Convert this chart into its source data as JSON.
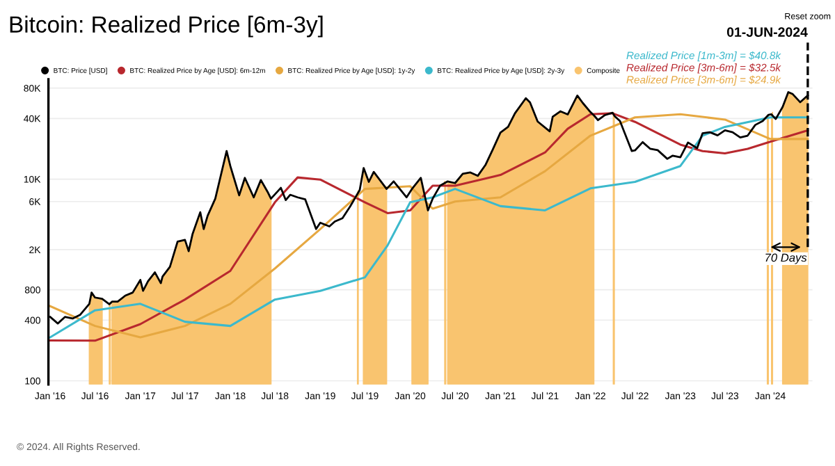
{
  "chart_data": {
    "type": "line",
    "title": "Bitcoin: Realized Price [6m-3y]",
    "log": "y",
    "ylim": [
      92,
      98000
    ],
    "yticks": [
      100,
      400,
      800,
      {
        "value": 2000,
        "label": "2K"
      },
      {
        "value": 6000,
        "label": "6K"
      },
      {
        "value": 10000,
        "label": "10K"
      },
      {
        "value": 40000,
        "label": "40K"
      },
      {
        "value": 80000,
        "label": "80K"
      }
    ],
    "xlim": [
      "2015-12-25",
      "2024-06-20"
    ],
    "xticks": [
      {
        "value": "2016-01-01",
        "label": "Jan '16"
      },
      {
        "value": "2016-07-01",
        "label": "Jul '16"
      },
      {
        "value": "2017-01-01",
        "label": "Jan '17"
      },
      {
        "value": "2017-07-01",
        "label": "Jul '17"
      },
      {
        "value": "2018-01-01",
        "label": "Jan '18"
      },
      {
        "value": "2018-07-01",
        "label": "Jul '18"
      },
      {
        "value": "2019-01-01",
        "label": "Jan '19"
      },
      {
        "value": "2019-07-01",
        "label": "Jul '19"
      },
      {
        "value": "2020-01-01",
        "label": "Jan '20"
      },
      {
        "value": "2020-07-01",
        "label": "Jul '20"
      },
      {
        "value": "2021-01-01",
        "label": "Jan '21"
      },
      {
        "value": "2021-07-01",
        "label": "Jul '21"
      },
      {
        "value": "2022-01-01",
        "label": "Jan '22"
      },
      {
        "value": "2022-07-01",
        "label": "Jul '22"
      },
      {
        "value": "2023-01-01",
        "label": "Jan '23"
      },
      {
        "value": "2023-07-01",
        "label": "Jul '23"
      },
      {
        "value": "2024-01-01",
        "label": "Jan '24"
      }
    ],
    "grid": "y",
    "legend": "top",
    "marker": "none",
    "line_style": "solid",
    "series": [
      {
        "name": "BTC: Price [USD]",
        "color": "#000000",
        "x": [
          "2016-01-01",
          "2016-02-01",
          "2016-03-01",
          "2016-04-01",
          "2016-05-01",
          "2016-06-08",
          "2016-06-17",
          "2016-07-01",
          "2016-07-30",
          "2016-08-28",
          "2016-09-08",
          "2016-10-01",
          "2016-11-01",
          "2016-12-01",
          "2017-01-01",
          "2017-01-12",
          "2017-02-01",
          "2017-03-01",
          "2017-03-25",
          "2017-04-01",
          "2017-05-01",
          "2017-06-01",
          "2017-07-01",
          "2017-07-16",
          "2017-08-01",
          "2017-09-01",
          "2017-09-15",
          "2017-10-01",
          "2017-11-01",
          "2017-12-17",
          "2018-01-01",
          "2018-02-06",
          "2018-03-01",
          "2018-04-06",
          "2018-05-05",
          "2018-06-01",
          "2018-06-15",
          "2018-07-25",
          "2018-08-14",
          "2018-09-01",
          "2018-10-01",
          "2018-11-01",
          "2018-12-15",
          "2019-01-01",
          "2019-02-07",
          "2019-03-01",
          "2019-04-01",
          "2019-05-01",
          "2019-06-10",
          "2019-06-26",
          "2019-07-17",
          "2019-08-06",
          "2019-09-27",
          "2019-10-26",
          "2019-12-17",
          "2020-01-08",
          "2020-02-13",
          "2020-03-13",
          "2020-04-01",
          "2020-05-01",
          "2020-06-01",
          "2020-07-01",
          "2020-08-01",
          "2020-09-01",
          "2020-10-01",
          "2020-11-01",
          "2020-12-01",
          "2021-01-01",
          "2021-02-01",
          "2021-03-01",
          "2021-04-14",
          "2021-05-01",
          "2021-06-01",
          "2021-07-20",
          "2021-08-01",
          "2021-09-01",
          "2021-10-01",
          "2021-11-09",
          "2021-12-01",
          "2022-01-01",
          "2022-01-15",
          "2022-02-01",
          "2022-03-01",
          "2022-04-01",
          "2022-04-10",
          "2022-05-01",
          "2022-06-18",
          "2022-07-01",
          "2022-08-01",
          "2022-09-01",
          "2022-10-01",
          "2022-11-09",
          "2022-12-01",
          "2023-01-01",
          "2023-02-01",
          "2023-03-10",
          "2023-04-01",
          "2023-05-01",
          "2023-06-01",
          "2023-07-01",
          "2023-08-01",
          "2023-09-01",
          "2023-10-01",
          "2023-11-01",
          "2023-12-01",
          "2023-12-25",
          "2024-01-05",
          "2024-01-23",
          "2024-02-20",
          "2024-03-14",
          "2024-04-01",
          "2024-05-01",
          "2024-06-01"
        ],
        "values": [
          430,
          370,
          430,
          415,
          450,
          580,
          750,
          670,
          650,
          575,
          610,
          610,
          700,
          750,
          1000,
          780,
          970,
          1190,
          930,
          1080,
          1350,
          2400,
          2500,
          1930,
          2870,
          4700,
          3200,
          4340,
          6400,
          19000,
          13500,
          6900,
          10300,
          6600,
          9800,
          7500,
          6400,
          8200,
          6200,
          7000,
          6600,
          6300,
          3200,
          3700,
          3400,
          3800,
          4100,
          5300,
          7800,
          12900,
          9400,
          11800,
          8000,
          9500,
          6600,
          8000,
          10300,
          4900,
          6400,
          8600,
          9500,
          9140,
          11300,
          11650,
          10780,
          13800,
          19700,
          29000,
          33000,
          45000,
          63500,
          57700,
          37300,
          29800,
          41500,
          47100,
          43800,
          67500,
          57000,
          46300,
          43000,
          38500,
          43200,
          45500,
          42000,
          37700,
          19000,
          19300,
          23300,
          20000,
          19400,
          15900,
          17100,
          16500,
          23100,
          20300,
          28500,
          29200,
          27200,
          30500,
          29200,
          25900,
          27000,
          34500,
          37700,
          43500,
          44000,
          39500,
          52000,
          73000,
          69700,
          58000,
          67700
        ]
      },
      {
        "name": "BTC: Realized Price by Age [USD]: 6m-12m",
        "color": "#b8282e",
        "x": [
          "2016-01-01",
          "2016-07-01",
          "2017-01-01",
          "2017-07-01",
          "2018-01-01",
          "2018-07-01",
          "2018-10-01",
          "2019-01-01",
          "2019-07-01",
          "2019-10-01",
          "2020-01-01",
          "2020-04-01",
          "2020-07-01",
          "2021-01-01",
          "2021-07-01",
          "2021-10-01",
          "2022-01-01",
          "2022-04-01",
          "2022-07-01",
          "2023-01-01",
          "2023-04-01",
          "2023-07-01",
          "2023-10-01",
          "2024-01-01",
          "2024-06-01"
        ],
        "values": [
          251,
          250,
          365,
          640,
          1230,
          5900,
          10400,
          9900,
          5900,
          4600,
          4900,
          8600,
          8600,
          11000,
          18400,
          31600,
          44000,
          45000,
          37000,
          22000,
          19000,
          18000,
          20000,
          23500,
          30500
        ]
      },
      {
        "name": "BTC: Realized Price by Age [USD]: 1y-2y",
        "color": "#e6a841",
        "x": [
          "2016-01-01",
          "2016-07-01",
          "2017-01-01",
          "2017-07-01",
          "2018-01-01",
          "2018-07-01",
          "2019-01-01",
          "2019-07-01",
          "2020-01-01",
          "2020-04-01",
          "2020-07-01",
          "2021-01-01",
          "2021-07-01",
          "2022-01-01",
          "2022-07-01",
          "2023-01-01",
          "2023-07-01",
          "2024-01-01",
          "2024-06-01"
        ],
        "values": [
          550,
          350,
          270,
          350,
          580,
          1300,
          3200,
          8000,
          8500,
          5100,
          6000,
          6600,
          12000,
          27000,
          41000,
          44000,
          39000,
          25000,
          25000
        ]
      },
      {
        "name": "BTC: Realized Price by Age [USD]: 2y-3y",
        "color": "#3cb9cc",
        "x": [
          "2016-01-01",
          "2016-07-01",
          "2017-01-01",
          "2017-07-01",
          "2018-01-01",
          "2018-07-01",
          "2019-01-01",
          "2019-07-01",
          "2019-10-01",
          "2020-01-01",
          "2020-04-01",
          "2020-07-01",
          "2021-01-01",
          "2021-07-01",
          "2022-01-01",
          "2022-07-01",
          "2023-01-01",
          "2023-04-01",
          "2023-07-01",
          "2024-01-01",
          "2024-06-01"
        ],
        "values": [
          270,
          500,
          580,
          385,
          350,
          640,
          780,
          1060,
          2200,
          5900,
          6600,
          8000,
          5400,
          4900,
          8100,
          9400,
          13500,
          27000,
          33000,
          41000,
          41000
        ]
      },
      {
        "name": "Composite",
        "color": "#f9c46f",
        "type": "area",
        "x": [
          "2016-06-08",
          "2016-06-17",
          "2016-07-01",
          "2016-07-30",
          "2016-08-10",
          "2016-08-28",
          "2016-09-01",
          "2016-09-04",
          "2016-09-08",
          "2016-10-01",
          "2016-11-01",
          "2016-12-01",
          "2017-01-01",
          "2017-01-12",
          "2017-02-01",
          "2017-03-01",
          "2017-03-25",
          "2017-04-01",
          "2017-05-01",
          "2017-06-01",
          "2017-07-01",
          "2017-07-16",
          "2017-08-01",
          "2017-09-01",
          "2017-09-15",
          "2017-10-01",
          "2017-11-01",
          "2017-12-17",
          "2018-01-01",
          "2018-02-06",
          "2018-03-01",
          "2018-04-06",
          "2018-05-05",
          "2018-06-01",
          "2018-06-15",
          "2018-06-20",
          "2019-06-01",
          "2019-06-04",
          "2019-06-07",
          "2019-06-25",
          "2019-06-26",
          "2019-07-17",
          "2019-08-06",
          "2019-09-27",
          "2019-10-01",
          "2020-01-08",
          "2020-02-13",
          "2020-03-13",
          "2020-03-16",
          "2020-05-20",
          "2020-05-24",
          "2020-05-27",
          "2020-06-01",
          "2020-07-01",
          "2020-08-01",
          "2020-09-01",
          "2020-10-01",
          "2020-11-01",
          "2020-12-01",
          "2021-01-01",
          "2021-02-01",
          "2021-03-01",
          "2021-04-14",
          "2021-05-01",
          "2021-06-01",
          "2021-07-20",
          "2021-08-01",
          "2021-09-01",
          "2021-10-01",
          "2021-11-09",
          "2021-12-01",
          "2022-01-01",
          "2022-01-15",
          "2022-01-20",
          "2022-04-04",
          "2022-04-08",
          "2022-04-12",
          "2023-12-20",
          "2023-12-24",
          "2023-12-28",
          "2024-01-06",
          "2024-01-10",
          "2024-01-14",
          "2024-02-20",
          "2024-03-14",
          "2024-04-01",
          "2024-05-01",
          "2024-06-01"
        ],
        "values": [
          580,
          750,
          670,
          650,
          null,
          575,
          590,
          null,
          610,
          610,
          700,
          750,
          1000,
          780,
          970,
          1190,
          930,
          1080,
          1350,
          2400,
          2500,
          1930,
          2870,
          4700,
          3200,
          4340,
          6400,
          19000,
          13500,
          6900,
          10300,
          6600,
          9800,
          7500,
          6400,
          null,
          7300,
          7700,
          null,
          11500,
          12900,
          9400,
          11800,
          8000,
          null,
          8000,
          10300,
          4900,
          null,
          9500,
          9200,
          null,
          9500,
          9140,
          11300,
          11650,
          10780,
          13800,
          19700,
          29000,
          33000,
          45000,
          63500,
          57700,
          37300,
          29800,
          41500,
          47100,
          43800,
          67500,
          57000,
          46300,
          43000,
          null,
          46000,
          43000,
          null,
          43000,
          43500,
          null,
          44000,
          46000,
          null,
          52000,
          73000,
          69700,
          58000,
          67700
        ]
      }
    ],
    "ref_lines": [
      {
        "axis": "x",
        "value": "2024-06-01",
        "label": "01-JUN-2024",
        "color": "#000000",
        "line_style": "dashed"
      }
    ],
    "annotations": [
      "Realized Price [1m-3m] = $40.8k",
      "Realized Price [3m-6m] = $32.5k",
      "Realized Price [3m-6m] = $24.9k",
      "70 Days",
      "Reset zoom",
      "© 2024. All Rights Reserved."
    ]
  }
}
